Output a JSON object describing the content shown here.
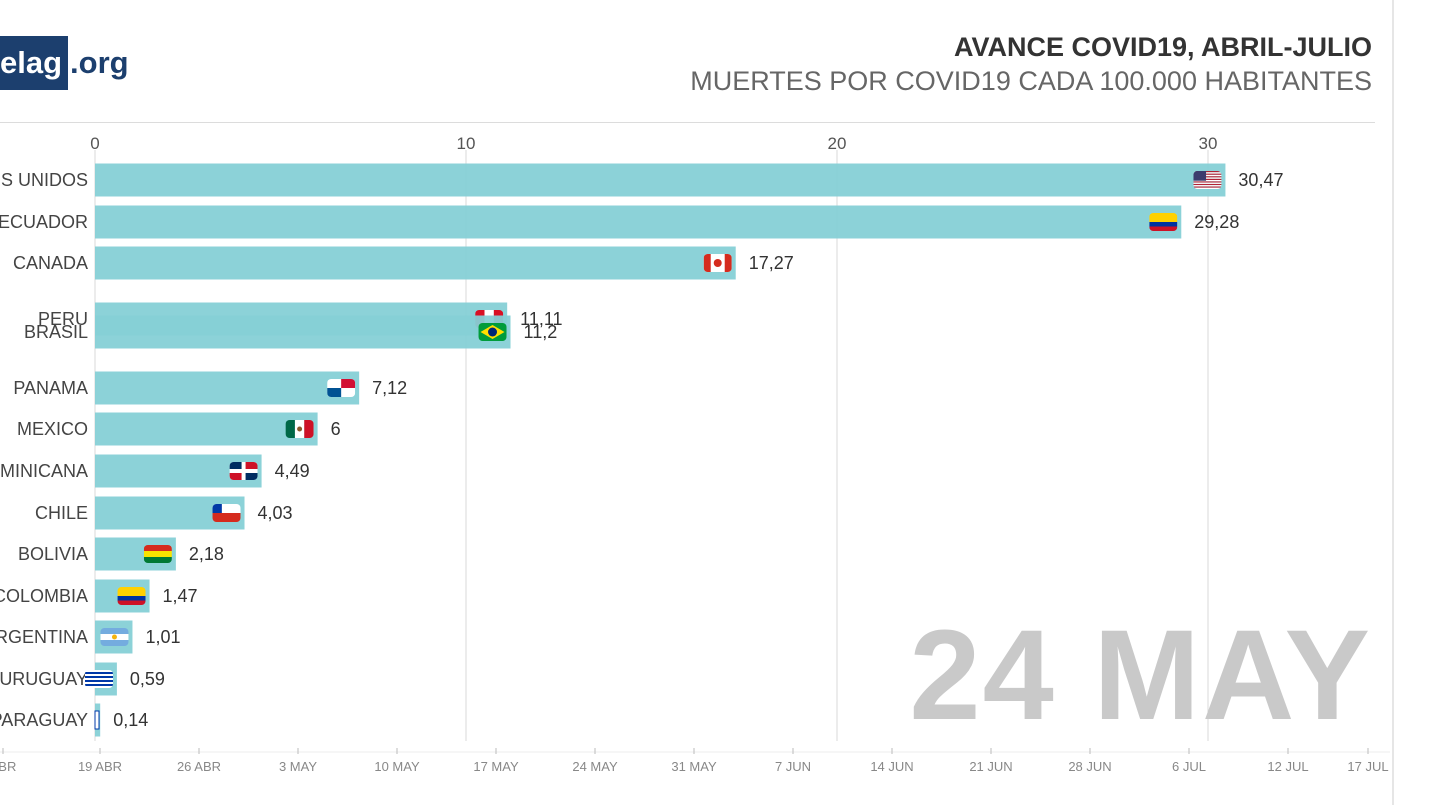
{
  "logo": {
    "box_text": "elag",
    "suffix": ".org"
  },
  "header": {
    "title": "AVANCE COVID19, ABRIL-JULIO",
    "subtitle": "MUERTES POR COVID19 CADA 100.000 HABITANTES"
  },
  "date_watermark": "24 MAY",
  "chart_data": {
    "type": "bar",
    "orientation": "horizontal",
    "title": "AVANCE COVID19, ABRIL-JULIO",
    "subtitle": "MUERTES POR COVID19 CADA 100.000 HABITANTES",
    "xlim": [
      0,
      34
    ],
    "x_ticks": [
      0,
      10,
      20,
      30
    ],
    "grid": true,
    "bar_color": "#86d0d6",
    "categories": [
      "S UNIDOS",
      "ECUADOR",
      "CANADA",
      "PERU",
      "BRASIL",
      "PANAMA",
      "MEXICO",
      "MINICANA",
      "CHILE",
      "BOLIVIA",
      "COLOMBIA",
      "RGENTINA",
      "URUGUAY",
      "PARAGUAY"
    ],
    "values": [
      30.47,
      29.28,
      17.27,
      11.11,
      11.2,
      7.12,
      6,
      4.49,
      4.03,
      2.18,
      1.47,
      1.01,
      0.59,
      0.14
    ],
    "value_labels": [
      "30,47",
      "29,28",
      "17,27",
      "11,11",
      "11,2",
      "7,12",
      "6",
      "4,49",
      "4,03",
      "2,18",
      "1,47",
      "1,01",
      "0,59",
      "0,14"
    ],
    "flags": [
      "usa",
      "ecuador",
      "canada",
      "peru",
      "brazil",
      "panama",
      "mexico",
      "dominican-republic",
      "chile",
      "bolivia",
      "colombia",
      "argentina",
      "uruguay",
      "paraguay"
    ],
    "timeline": {
      "labels": [
        "ABR",
        "19 ABR",
        "26 ABR",
        "3 MAY",
        "10 MAY",
        "17 MAY",
        "24 MAY",
        "31 MAY",
        "7 JUN",
        "14 JUN",
        "21 JUN",
        "28 JUN",
        "6 JUL",
        "12 JUL",
        "17 JUL"
      ],
      "current": "24 MAY"
    }
  }
}
